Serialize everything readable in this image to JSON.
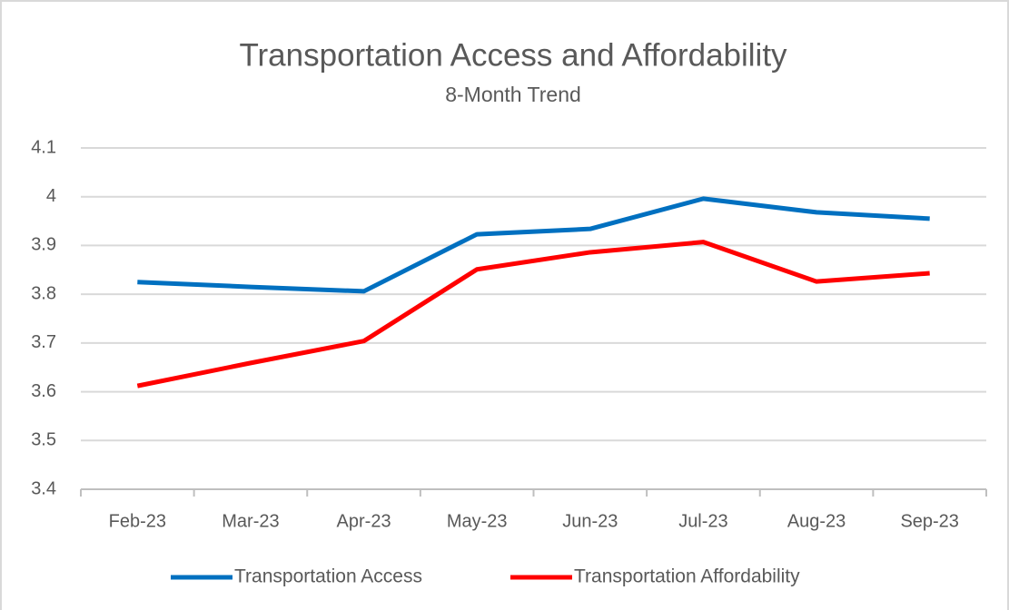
{
  "chart_data": {
    "type": "line",
    "title": "Transportation Access and Affordability",
    "subtitle": "8-Month Trend",
    "categories": [
      "Feb-23",
      "Mar-23",
      "Apr-23",
      "May-23",
      "Jun-23",
      "Jul-23",
      "Aug-23",
      "Sep-23"
    ],
    "series": [
      {
        "name": "Transportation Access",
        "color": "#0070c0",
        "values": [
          3.825,
          3.815,
          3.806,
          3.923,
          3.934,
          3.996,
          3.968,
          3.955
        ]
      },
      {
        "name": "Transportation Affordability",
        "color": "#ff0000",
        "values": [
          3.612,
          3.659,
          3.704,
          3.851,
          3.886,
          3.907,
          3.826,
          3.843
        ]
      }
    ],
    "ylim": [
      3.4,
      4.1
    ],
    "yticks": [
      3.4,
      3.5,
      3.6,
      3.7,
      3.8,
      3.9,
      4,
      4.1
    ],
    "grid": true,
    "legend": "bottom"
  }
}
